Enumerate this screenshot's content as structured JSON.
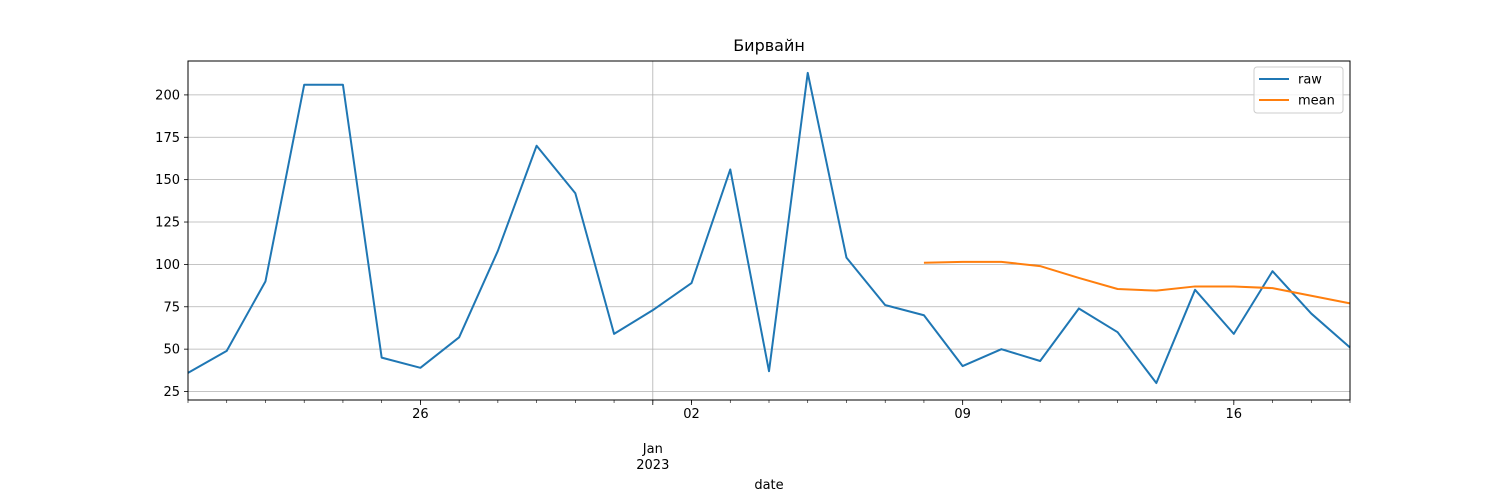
{
  "chart_data": {
    "type": "line",
    "title": "Бирвайн",
    "xlabel": "date",
    "ylabel": "",
    "x": [
      "2022-12-20",
      "2022-12-21",
      "2022-12-22",
      "2022-12-23",
      "2022-12-24",
      "2022-12-25",
      "2022-12-26",
      "2022-12-27",
      "2022-12-28",
      "2022-12-29",
      "2022-12-30",
      "2022-12-31",
      "2023-01-01",
      "2023-01-02",
      "2023-01-03",
      "2023-01-04",
      "2023-01-05",
      "2023-01-06",
      "2023-01-07",
      "2023-01-08",
      "2023-01-09",
      "2023-01-10",
      "2023-01-11",
      "2023-01-12",
      "2023-01-13",
      "2023-01-14",
      "2023-01-15",
      "2023-01-16",
      "2023-01-17",
      "2023-01-18",
      "2023-01-19"
    ],
    "xlim": [
      "2022-12-20",
      "2023-01-19"
    ],
    "ylim": [
      20,
      220
    ],
    "yticks": [
      25,
      50,
      75,
      100,
      125,
      150,
      175,
      200
    ],
    "xticks_major": [
      {
        "date": "2022-12-26",
        "label": "26"
      },
      {
        "date": "2023-01-02",
        "label": "02"
      },
      {
        "date": "2023-01-09",
        "label": "09"
      },
      {
        "date": "2023-01-16",
        "label": "16"
      }
    ],
    "month_label": {
      "date": "2023-01-01",
      "line1": "Jan",
      "line2": "2023"
    },
    "grid": true,
    "legend_position": "top-right",
    "series": [
      {
        "name": "raw",
        "color": "#1f77b4",
        "values": [
          36,
          49,
          90,
          206,
          206,
          45,
          39,
          57,
          108,
          170,
          142,
          59,
          73,
          89,
          156,
          37,
          213,
          104,
          76,
          70,
          40,
          50,
          43,
          74,
          60,
          30,
          85,
          59,
          96,
          71,
          51
        ]
      },
      {
        "name": "mean",
        "color": "#ff7f0e",
        "values": [
          null,
          null,
          null,
          null,
          null,
          null,
          null,
          null,
          null,
          null,
          null,
          null,
          null,
          null,
          null,
          null,
          null,
          null,
          null,
          101,
          101.5,
          101.5,
          99,
          92,
          85.5,
          84.5,
          87,
          87,
          86,
          81.5,
          77
        ]
      }
    ]
  }
}
